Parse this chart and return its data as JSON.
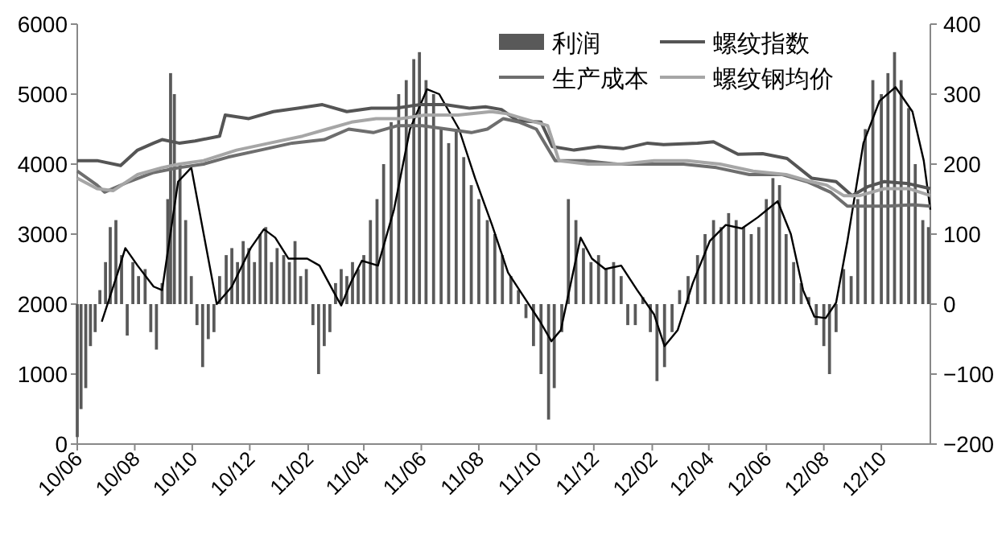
{
  "chart_data": {
    "type": "bar",
    "legend": "top",
    "grid": false,
    "xlim": [
      "2010-06-01",
      "2012-11-22"
    ],
    "xticks": [
      {
        "value": "2010-06-01",
        "label": "10/06"
      },
      {
        "value": "2010-08-01",
        "label": "10/08"
      },
      {
        "value": "2010-10-01",
        "label": "10/10"
      },
      {
        "value": "2010-12-01",
        "label": "10/12"
      },
      {
        "value": "2011-02-01",
        "label": "11/02"
      },
      {
        "value": "2011-04-01",
        "label": "11/04"
      },
      {
        "value": "2011-06-01",
        "label": "11/06"
      },
      {
        "value": "2011-08-01",
        "label": "11/08"
      },
      {
        "value": "2011-10-01",
        "label": "11/10"
      },
      {
        "value": "2011-12-01",
        "label": "11/12"
      },
      {
        "value": "2012-02-01",
        "label": "12/02"
      },
      {
        "value": "2012-04-01",
        "label": "12/04"
      },
      {
        "value": "2012-06-01",
        "label": "12/06"
      },
      {
        "value": "2012-08-01",
        "label": "12/08"
      },
      {
        "value": "2012-10-01",
        "label": "12/10"
      }
    ],
    "ylim": [
      0,
      6000
    ],
    "yticks": [
      0,
      1000,
      2000,
      3000,
      4000,
      5000,
      6000
    ],
    "y2lim": [
      -200,
      400
    ],
    "y2ticks": [
      -200,
      -100,
      0,
      100,
      200,
      300,
      400
    ],
    "series": [
      {
        "name": "利润",
        "axis": "y2",
        "color": "#595959",
        "x": [
          "2010-06-01",
          "2010-06-05",
          "2010-06-10",
          "2010-06-15",
          "2010-06-20",
          "2010-06-25",
          "2010-07-01",
          "2010-07-06",
          "2010-07-12",
          "2010-07-18",
          "2010-07-24",
          "2010-07-30",
          "2010-08-05",
          "2010-08-12",
          "2010-08-18",
          "2010-08-24",
          "2010-08-30",
          "2010-09-05",
          "2010-09-08",
          "2010-09-12",
          "2010-09-18",
          "2010-09-24",
          "2010-09-30",
          "2010-10-06",
          "2010-10-12",
          "2010-10-18",
          "2010-10-24",
          "2010-10-30",
          "2010-11-06",
          "2010-11-12",
          "2010-11-18",
          "2010-11-24",
          "2010-11-30",
          "2010-12-06",
          "2010-12-12",
          "2010-12-18",
          "2010-12-24",
          "2010-12-30",
          "2011-01-06",
          "2011-01-12",
          "2011-01-18",
          "2011-01-24",
          "2011-01-30",
          "2011-02-06",
          "2011-02-12",
          "2011-02-18",
          "2011-02-24",
          "2011-03-02",
          "2011-03-08",
          "2011-03-14",
          "2011-03-20",
          "2011-03-26",
          "2011-04-01",
          "2011-04-08",
          "2011-04-15",
          "2011-04-22",
          "2011-04-30",
          "2011-05-08",
          "2011-05-16",
          "2011-05-24",
          "2011-05-30",
          "2011-06-06",
          "2011-06-14",
          "2011-06-22",
          "2011-06-30",
          "2011-07-08",
          "2011-07-16",
          "2011-07-24",
          "2011-08-01",
          "2011-08-10",
          "2011-08-18",
          "2011-08-26",
          "2011-09-04",
          "2011-09-12",
          "2011-09-20",
          "2011-09-28",
          "2011-10-06",
          "2011-10-14",
          "2011-10-20",
          "2011-10-28",
          "2011-11-04",
          "2011-11-12",
          "2011-11-20",
          "2011-11-28",
          "2011-12-06",
          "2011-12-14",
          "2011-12-22",
          "2011-12-30",
          "2012-01-06",
          "2012-01-14",
          "2012-01-22",
          "2012-01-30",
          "2012-02-06",
          "2012-02-14",
          "2012-02-22",
          "2012-03-01",
          "2012-03-10",
          "2012-03-20",
          "2012-03-28",
          "2012-04-06",
          "2012-04-14",
          "2012-04-22",
          "2012-04-30",
          "2012-05-08",
          "2012-05-16",
          "2012-05-24",
          "2012-06-01",
          "2012-06-08",
          "2012-06-15",
          "2012-06-22",
          "2012-06-30",
          "2012-07-08",
          "2012-07-16",
          "2012-07-24",
          "2012-08-01",
          "2012-08-07",
          "2012-08-14",
          "2012-08-22",
          "2012-08-30",
          "2012-09-06",
          "2012-09-14",
          "2012-09-22",
          "2012-10-01",
          "2012-10-08",
          "2012-10-15",
          "2012-10-22",
          "2012-10-30",
          "2012-11-06",
          "2012-11-14",
          "2012-11-20"
        ],
        "values": [
          -190,
          -150,
          -120,
          -60,
          -40,
          20,
          60,
          110,
          120,
          70,
          -45,
          60,
          40,
          50,
          -40,
          -65,
          30,
          150,
          330,
          300,
          200,
          120,
          40,
          -30,
          -90,
          -50,
          -40,
          40,
          70,
          80,
          60,
          90,
          80,
          60,
          100,
          110,
          60,
          80,
          70,
          60,
          90,
          40,
          50,
          -30,
          -100,
          -60,
          -40,
          30,
          50,
          40,
          60,
          50,
          70,
          120,
          150,
          200,
          260,
          300,
          320,
          350,
          360,
          320,
          300,
          250,
          230,
          250,
          210,
          170,
          150,
          120,
          100,
          70,
          40,
          20,
          -20,
          -60,
          -100,
          -165,
          -120,
          -40,
          150,
          120,
          80,
          60,
          70,
          50,
          60,
          40,
          -30,
          -30,
          10,
          -40,
          -110,
          -90,
          -40,
          20,
          40,
          70,
          100,
          120,
          110,
          130,
          120,
          110,
          100,
          110,
          150,
          180,
          170,
          100,
          60,
          30,
          10,
          -30,
          -60,
          -100,
          -40,
          50,
          40,
          150,
          250,
          320,
          300,
          330,
          360,
          320,
          280,
          200,
          120,
          110
        ]
      },
      {
        "type": "line",
        "axis": "y2",
        "color": "#000000",
        "x": [
          "2010-06-27",
          "2010-07-14",
          "2010-07-22",
          "2010-08-04",
          "2010-08-21",
          "2010-08-30",
          "2010-09-16",
          "2010-09-30",
          "2010-10-27",
          "2010-11-12",
          "2010-12-02",
          "2010-12-16",
          "2010-12-28",
          "2011-01-11",
          "2011-01-31",
          "2011-02-13",
          "2011-02-27",
          "2011-03-08",
          "2011-03-18",
          "2011-03-30",
          "2011-04-16",
          "2011-05-03",
          "2011-05-20",
          "2011-06-07",
          "2011-06-20",
          "2011-07-11",
          "2011-07-28",
          "2011-08-15",
          "2011-09-01",
          "2011-09-18",
          "2011-10-05",
          "2011-10-17",
          "2011-10-27",
          "2011-11-09",
          "2011-11-17",
          "2011-11-29",
          "2011-12-13",
          "2011-12-30",
          "2012-01-16",
          "2012-02-03",
          "2012-02-14",
          "2012-02-28",
          "2012-03-15",
          "2012-04-02",
          "2012-04-19",
          "2012-05-06",
          "2012-05-23",
          "2012-06-13",
          "2012-06-27",
          "2012-07-10",
          "2012-07-22",
          "2012-08-03",
          "2012-08-14",
          "2012-08-26",
          "2012-09-12",
          "2012-09-29",
          "2012-10-16",
          "2012-11-03",
          "2012-11-15",
          "2012-11-22"
        ],
        "values": [
          -25,
          45,
          80,
          55,
          25,
          20,
          175,
          195,
          0,
          25,
          80,
          107,
          95,
          65,
          65,
          55,
          20,
          -2,
          30,
          62,
          55,
          135,
          250,
          307,
          300,
          250,
          180,
          113,
          45,
          10,
          -25,
          -53,
          -37,
          45,
          95,
          65,
          50,
          55,
          20,
          -15,
          -60,
          -37,
          30,
          90,
          113,
          108,
          124,
          147,
          100,
          20,
          -18,
          -20,
          2,
          90,
          230,
          290,
          310,
          275,
          205,
          135
        ]
      },
      {
        "name": "螺纹指数",
        "type": "line",
        "color": "#555555",
        "x": [
          "2010-06-01",
          "2010-06-22",
          "2010-07-17",
          "2010-08-04",
          "2010-08-21",
          "2010-08-30",
          "2010-09-17",
          "2010-10-04",
          "2010-10-30",
          "2010-11-05",
          "2010-11-30",
          "2010-12-26",
          "2011-01-21",
          "2011-02-16",
          "2011-03-14",
          "2011-04-09",
          "2011-05-05",
          "2011-05-31",
          "2011-06-26",
          "2011-07-22",
          "2011-08-08",
          "2011-08-25",
          "2011-09-11",
          "2011-10-06",
          "2011-10-18",
          "2011-11-10",
          "2011-12-06",
          "2012-01-01",
          "2012-01-27",
          "2012-02-13",
          "2012-03-20",
          "2012-04-06",
          "2012-05-02",
          "2012-05-28",
          "2012-06-23",
          "2012-07-19",
          "2012-08-14",
          "2012-08-31",
          "2012-09-17",
          "2012-10-04",
          "2012-10-30",
          "2012-11-22"
        ],
        "values": [
          4050,
          4050,
          3980,
          4200,
          4300,
          4350,
          4300,
          4330,
          4400,
          4700,
          4650,
          4750,
          4800,
          4850,
          4750,
          4800,
          4800,
          4850,
          4850,
          4800,
          4820,
          4780,
          4620,
          4600,
          4250,
          4200,
          4250,
          4220,
          4300,
          4280,
          4300,
          4320,
          4140,
          4150,
          4080,
          3800,
          3750,
          3550,
          3680,
          3750,
          3720,
          3650
        ]
      },
      {
        "name": "生产成本",
        "type": "line",
        "color": "#6e6e6e",
        "x": [
          "2010-06-01",
          "2010-06-22",
          "2010-06-30",
          "2010-07-26",
          "2010-08-21",
          "2010-09-17",
          "2010-10-13",
          "2010-11-08",
          "2010-12-12",
          "2011-01-15",
          "2011-02-18",
          "2011-03-16",
          "2011-04-11",
          "2011-05-07",
          "2011-06-02",
          "2011-06-28",
          "2011-07-24",
          "2011-08-10",
          "2011-08-27",
          "2011-09-13",
          "2011-10-01",
          "2011-10-21",
          "2011-11-21",
          "2011-12-26",
          "2012-01-30",
          "2012-03-05",
          "2012-04-09",
          "2012-05-14",
          "2012-06-18",
          "2012-07-14",
          "2012-08-08",
          "2012-08-26",
          "2012-09-12",
          "2012-10-08",
          "2012-11-03",
          "2012-11-22"
        ],
        "values": [
          3900,
          3700,
          3600,
          3750,
          3880,
          3950,
          4000,
          4100,
          4200,
          4300,
          4350,
          4500,
          4450,
          4550,
          4550,
          4500,
          4450,
          4500,
          4650,
          4600,
          4500,
          4050,
          4050,
          4000,
          4000,
          4000,
          3950,
          3850,
          3850,
          3750,
          3600,
          3400,
          3400,
          3400,
          3420,
          3400
        ]
      },
      {
        "name": "螺纹钢均价",
        "type": "line",
        "color": "#a6a6a6",
        "x": [
          "2010-06-01",
          "2010-06-22",
          "2010-07-09",
          "2010-08-04",
          "2010-08-30",
          "2010-09-17",
          "2010-10-13",
          "2010-11-17",
          "2010-12-22",
          "2011-01-26",
          "2011-02-21",
          "2011-03-19",
          "2011-04-14",
          "2011-05-10",
          "2011-06-05",
          "2011-07-10",
          "2011-08-14",
          "2011-08-31",
          "2011-09-17",
          "2011-10-13",
          "2011-10-25",
          "2011-11-25",
          "2011-12-30",
          "2012-02-03",
          "2012-03-09",
          "2012-04-13",
          "2012-05-18",
          "2012-06-22",
          "2012-07-18",
          "2012-08-04",
          "2012-08-22",
          "2012-09-08",
          "2012-10-04",
          "2012-10-30",
          "2012-11-22"
        ],
        "values": [
          3800,
          3650,
          3620,
          3850,
          3950,
          4000,
          4050,
          4200,
          4300,
          4400,
          4500,
          4600,
          4650,
          4650,
          4700,
          4700,
          4750,
          4720,
          4650,
          4550,
          4050,
          4000,
          4000,
          4050,
          4050,
          4000,
          3900,
          3850,
          3750,
          3700,
          3550,
          3550,
          3650,
          3650,
          3550
        ]
      }
    ]
  }
}
